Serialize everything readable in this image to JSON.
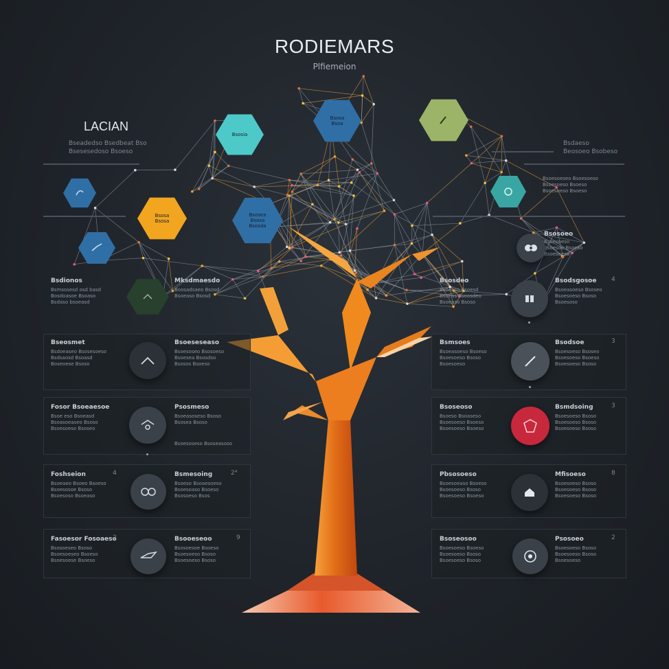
{
  "header": {
    "title": "RODIEMARS",
    "subtitle": "Plfiemeion"
  },
  "left_block": {
    "title": "LACIAN",
    "line1": "Bseadedso  Bsedbeat Bso",
    "line2": "Bsesesedoso  Bsoeso"
  },
  "right_block": {
    "line1": "Bsdaeso",
    "line2": "Beosoeo Bsobeso"
  },
  "hexagons": [
    {
      "label": "Bsosia",
      "color": "#4ec9c9"
    },
    {
      "label": "Bsosa\nBsoa",
      "color": "#2f6fa6"
    },
    {
      "label": "",
      "color": "#9bb468"
    },
    {
      "label": "",
      "color": "#2f6fa6"
    },
    {
      "label": "Bsosa\nBsosa",
      "color": "#f2a51f"
    },
    {
      "label": "Bsosea\nBsosa\nBsosda",
      "color": "#2f6fa6"
    },
    {
      "label": "",
      "color": "#2f6fa6"
    },
    {
      "label": "",
      "color": "#3aa6a3"
    },
    {
      "label": "",
      "color": "#27412e"
    }
  ],
  "left_panels": [
    {
      "heading": "Bsdionos",
      "title": "Mksdmaesdo",
      "text_a": "Bsmsosesd osd basd\nBosdoasoe Bsoaso\nBsdaso bsoeasd",
      "text_b": "Boosadsaeo Bsosd\nBsoeaso Bsosd"
    },
    {
      "heading": "Bseosmet",
      "title": "Bsoeseseaso",
      "text_a": "Bsdoeaseo Bsosesoeso\nBsdsaosd Bsoasd\nBoseoese Bsoso",
      "text_b": "Bsoesoseo Bsosoeso\nBsoesea Bsosdso\nBsosos Bsoeso"
    },
    {
      "heading": "Fosor Bsoeaesoe",
      "title": "Psosmeso",
      "text_a": "Bsoe eso Bsoeasd\nBsoasoeaseo Bsoso\nBsoesoeso Bsoseo",
      "text_b": "Bsoeasoseso Bsoso\nBsosea Bsoso",
      "note": "Bsoesoseso Bsoseasoso"
    },
    {
      "heading": "Foshseion",
      "title": "Bsmesoing",
      "text_a": "Bsoeaeo Bsoeo Bsoeso\nBsoesosoe Bsoso\nBsoesoso Bsoeaso",
      "text_b": "Bsoeso Bsoaesoeso\nBsoesoaso Bsoeso\nBsosoeso Bsos"
    },
    {
      "heading": "Fasoesor Fosoaeso",
      "title": "Bsooeseoo",
      "text_a": "Bsosoeseo Bsoso\nBsoesoeseo Bsoeso\nBsoesoese Bsoeso",
      "text_b": "Bsosoesoe Bsoeso\nBsoesoeso Bsoso\nBsoesoeso Bsoso"
    }
  ],
  "right_panels": [
    {
      "heading": "Bsosdeo",
      "title": "Bsodsgosoe",
      "text_a": "Bsoeaso Bsoesd\nBsoeas Bsoasdeo\nBsoeaso Bsoso",
      "text_b": "Bsoeasoeso Bsoseo\nBsoesoeso Bsoso\nBsoesoso"
    },
    {
      "heading": "Bsmsoes",
      "title": "Bsodsoe",
      "text_a": "Bsoeasoeso Bsoeso\nBsoesoeso Bsoso\nBsoesoeso",
      "text_b": "Bsoesoeso Bsoseo\nBsoesoeso Bsoeso\nBsoesoeso Bsoso"
    },
    {
      "heading": "Bsoseoso",
      "title": "Bsmdsoing",
      "text_a": "Bsoeso Bsoaseso\nBsoesoeso Bsoeso\nBsoesoeso Bsoeso",
      "text_b": "Bsoesoeso Bsoso\nBsoesoeso Bsoso\nBsoesoeso Bsoso"
    },
    {
      "heading": "Pbsosoeso",
      "title": "Mfisoeso",
      "text_a": "Bsoesoeaso Bsoeso\nBsoesoeso Bsoso\nBsoesoeso Bsoeso",
      "text_b": "Bsoesoeso Bsoso\nBsoesoeso Bsoso\nBsoesoeso Bsoso"
    },
    {
      "heading": "Bsoseosoo",
      "title": "Psosoeo",
      "text_a": "Bsoesoeso Bsoeso\nBsoesoeso Bsoso\nBsoesoeso Bsoso",
      "text_b": "Bsoesoeso Bsoso\nBsoesoeso Bsoso\nBsoesoeso"
    }
  ],
  "right_upper": {
    "block1": "Bsoesoeseo Bsoesoeso\nBsoesoeso Bsoeso\nBsoesoeso Bsoeso",
    "block2_title": "Bsosoeo",
    "block2": "Bsoesoeso\nBsoesoe Bsoeso\nBsoesoeso"
  },
  "colors": {
    "accent_orange": "#f08a1e",
    "background": "#1f242a",
    "red_badge": "#c8283c"
  }
}
